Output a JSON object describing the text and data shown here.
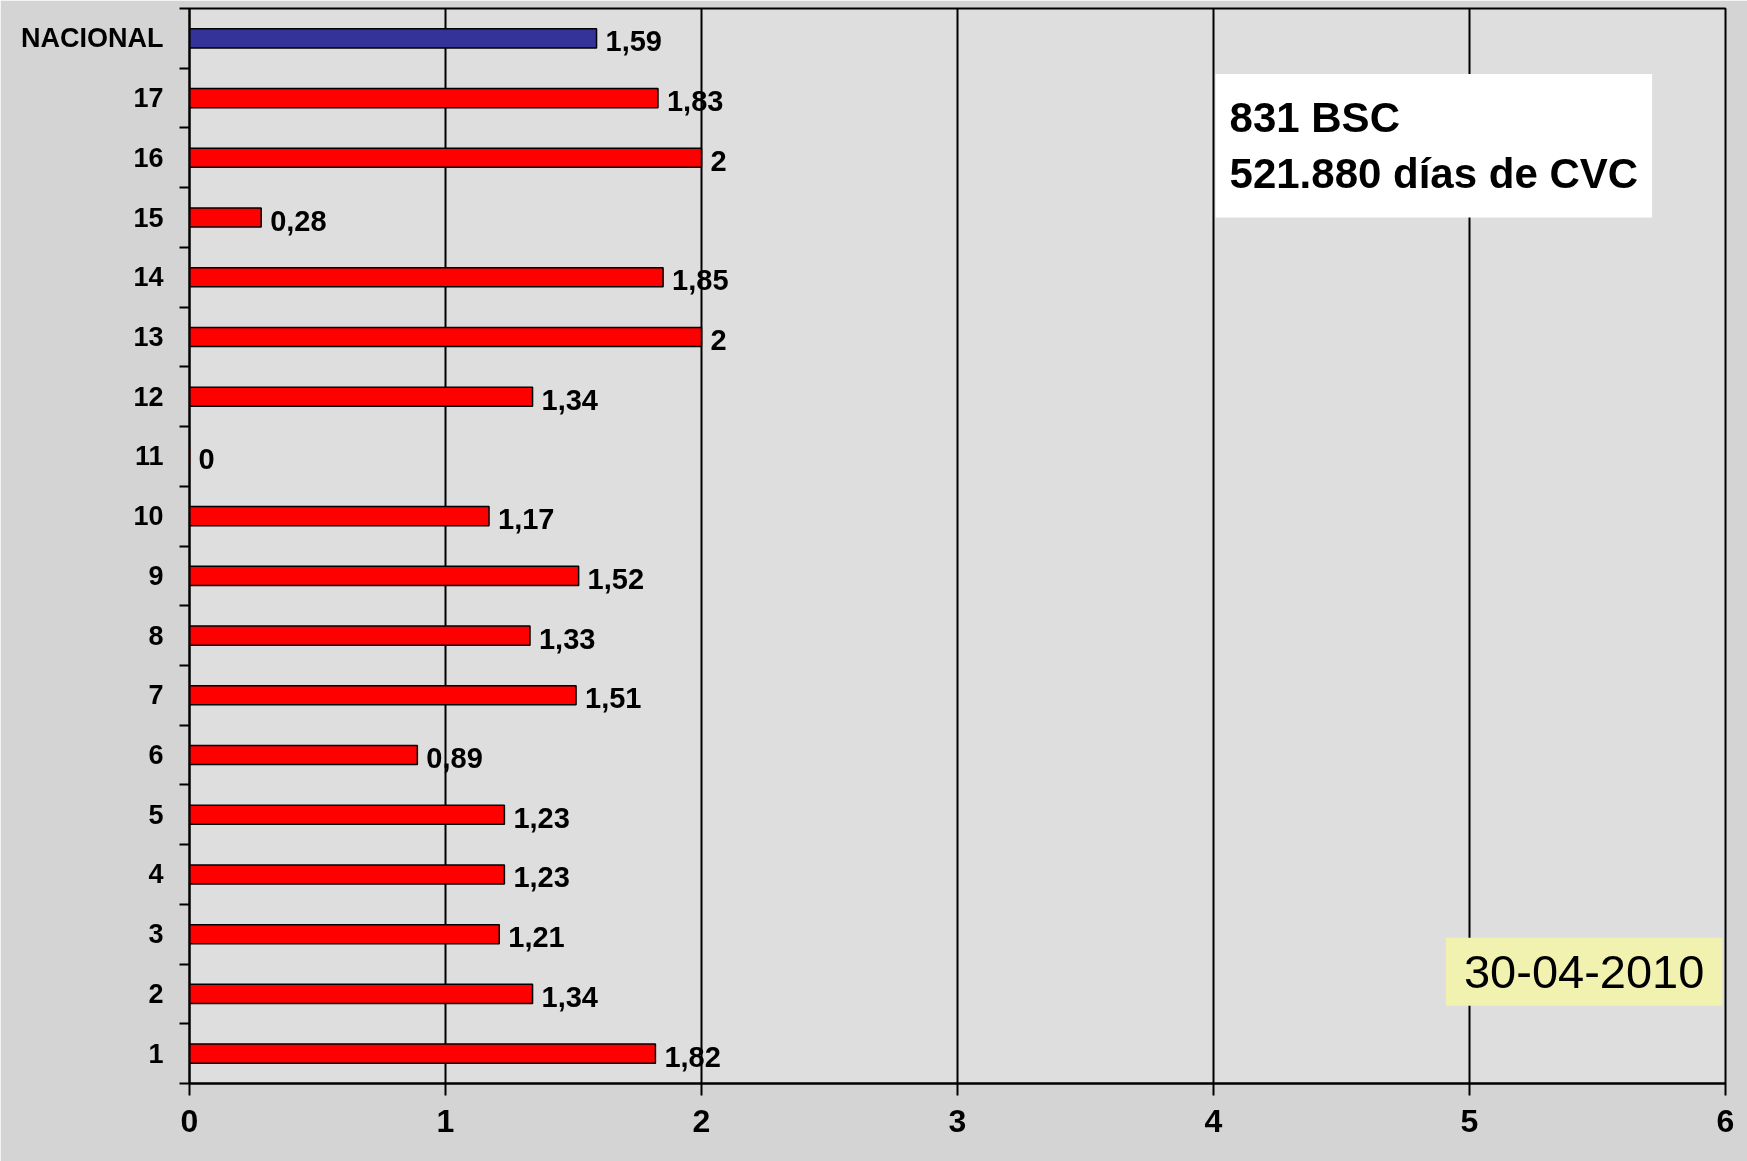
{
  "chart_data": {
    "type": "bar",
    "orientation": "horizontal",
    "categories": [
      "NACIONAL",
      "17",
      "16",
      "15",
      "14",
      "13",
      "12",
      "11",
      "10",
      "9",
      "8",
      "7",
      "6",
      "5",
      "4",
      "3",
      "2",
      "1"
    ],
    "values": [
      1.59,
      1.83,
      2,
      0.28,
      1.85,
      2,
      1.34,
      0,
      1.17,
      1.52,
      1.33,
      1.51,
      0.89,
      1.23,
      1.23,
      1.21,
      1.34,
      1.82
    ],
    "colors": [
      "#333399",
      "#ff0000",
      "#ff0000",
      "#ff0000",
      "#ff0000",
      "#ff0000",
      "#ff0000",
      "#ff0000",
      "#ff0000",
      "#ff0000",
      "#ff0000",
      "#ff0000",
      "#ff0000",
      "#ff0000",
      "#ff0000",
      "#ff0000",
      "#ff0000",
      "#ff0000"
    ],
    "value_labels": [
      "1,59",
      "1,83",
      "2",
      "0,28",
      "1,85",
      "2",
      "1,34",
      "0",
      "1,17",
      "1,52",
      "1,33",
      "1,51",
      "0,89",
      "1,23",
      "1,23",
      "1,21",
      "1,34",
      "1,82"
    ],
    "xlim": [
      0,
      6
    ],
    "xticks": [
      0,
      1,
      2,
      3,
      4,
      5,
      6
    ],
    "grid": "x",
    "annotations": [
      "831 BSC",
      "521.880 días de CVC",
      "30-04-2010"
    ]
  }
}
